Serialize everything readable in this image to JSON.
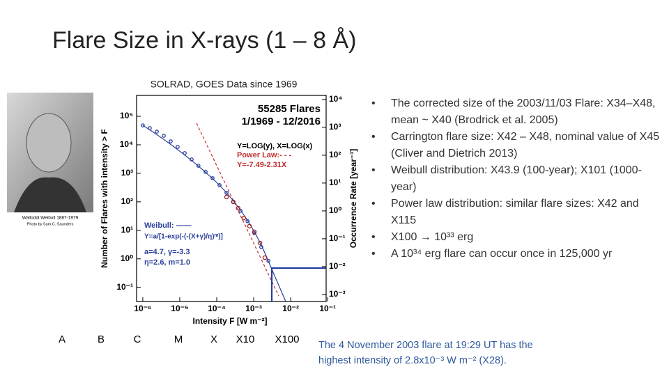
{
  "title": "Flare Size in X-rays (1 – 8 Å)",
  "subtitle": "SOLRAD, GOES Data since 1969",
  "portrait": {
    "caption": "Walloddi Weibull 1887-1979",
    "credit": "Photo by Sam C. Saunders"
  },
  "chart_data": {
    "type": "scatter",
    "xlabel": "Intensity F [W m⁻²]",
    "ylabel": "Number of Flares with intensity > F",
    "y2label": "Occurrence Rate [year⁻¹]",
    "annotations": [
      "55285 Flares",
      "1/1969 - 12/2016",
      "Y=LOG(y), X=LOG(x)",
      "Power Law:- - -",
      "Y=-7.49-2.31X",
      "Weibull: ——",
      "Y=a/[1-exp(-(-(X+γ)/η)ᵐ)]",
      "a=4.7, γ=-3.3",
      "η=2.6, m=1.0"
    ],
    "log_scale": true,
    "xlim": [
      6.8e-07,
      0.091
    ],
    "ylim": [
      0.032,
      540000
    ],
    "y2lim": [
      0.00056,
      14000
    ],
    "xticks": [
      {
        "value": 1e-06,
        "label": "10⁻⁶"
      },
      {
        "value": 1e-05,
        "label": "10⁻⁵"
      },
      {
        "value": 0.0001,
        "label": "10⁻⁴"
      },
      {
        "value": 0.001,
        "label": "10⁻³"
      },
      {
        "value": 0.01,
        "label": "10⁻²"
      },
      {
        "value": 0.1,
        "label": "10⁻¹"
      }
    ],
    "yticks": [
      {
        "value": 0.1,
        "label": "10⁻¹"
      },
      {
        "value": 1,
        "label": "10⁰"
      },
      {
        "value": 10,
        "label": "10¹"
      },
      {
        "value": 100,
        "label": "10²"
      },
      {
        "value": 1000,
        "label": "10³"
      },
      {
        "value": 10000,
        "label": "10⁴"
      },
      {
        "value": 100000,
        "label": "10⁵"
      }
    ],
    "y2ticks": [
      {
        "value": 0.001,
        "label": "10⁻³"
      },
      {
        "value": 0.01,
        "label": "10⁻²"
      },
      {
        "value": 0.1,
        "label": "10⁻¹"
      },
      {
        "value": 1,
        "label": "10⁰"
      },
      {
        "value": 10,
        "label": "10¹"
      },
      {
        "value": 100,
        "label": "10²"
      },
      {
        "value": 1000,
        "label": "10³"
      },
      {
        "value": 10000,
        "label": "10⁴"
      }
    ],
    "series": [
      {
        "color": "#2a3f9a",
        "x": [
          1e-06,
          1.55e-06,
          2.4e-06,
          3.7e-06,
          5.7e-06,
          8.8e-06,
          1.36e-05,
          2.1e-05,
          3.2e-05,
          5e-05,
          7.7e-05,
          0.000119,
          0.000184,
          0.00028,
          0.00044,
          0.00068,
          0.00104,
          0.0016,
          0.0025
        ],
        "values": [
          48000,
          38500,
          29000,
          20700,
          13200,
          8450,
          5100,
          3070,
          1850,
          1120,
          675,
          385,
          207,
          100,
          48,
          21,
          8,
          2.6,
          0.85
        ]
      },
      {
        "color": "#a02020",
        "x": [
          0.000184,
          0.00028,
          0.00038,
          0.00054,
          0.00077,
          0.00104,
          0.00148,
          0.002
        ],
        "values": [
          148,
          100,
          60,
          27,
          14,
          8.9,
          3.6,
          1.1
        ]
      }
    ]
  },
  "classes": [
    "A",
    "B",
    "C",
    "M",
    "X",
    "X10",
    "X100"
  ],
  "bullets": [
    "The corrected size of the 2003/11/03 Flare: X34–X48, mean ~ X40 (Brodrick et al. 2005)",
    "Carrington flare size:  X42 – X48, nominal value of X45 (Cliver and Dietrich 2013)",
    "Weibull distribution: X43.9 (100-year); X101 (1000-year)",
    "Power law distribution: similar flare sizes: X42 and X115",
    "X100 → 10³³ erg",
    "A 10³⁴ erg flare can occur once in 125,000 yr"
  ],
  "caption": "The 4 November 2003 flare at 19:29 UT has the highest intensity of 2.8x10⁻³ W m⁻² (X28)."
}
